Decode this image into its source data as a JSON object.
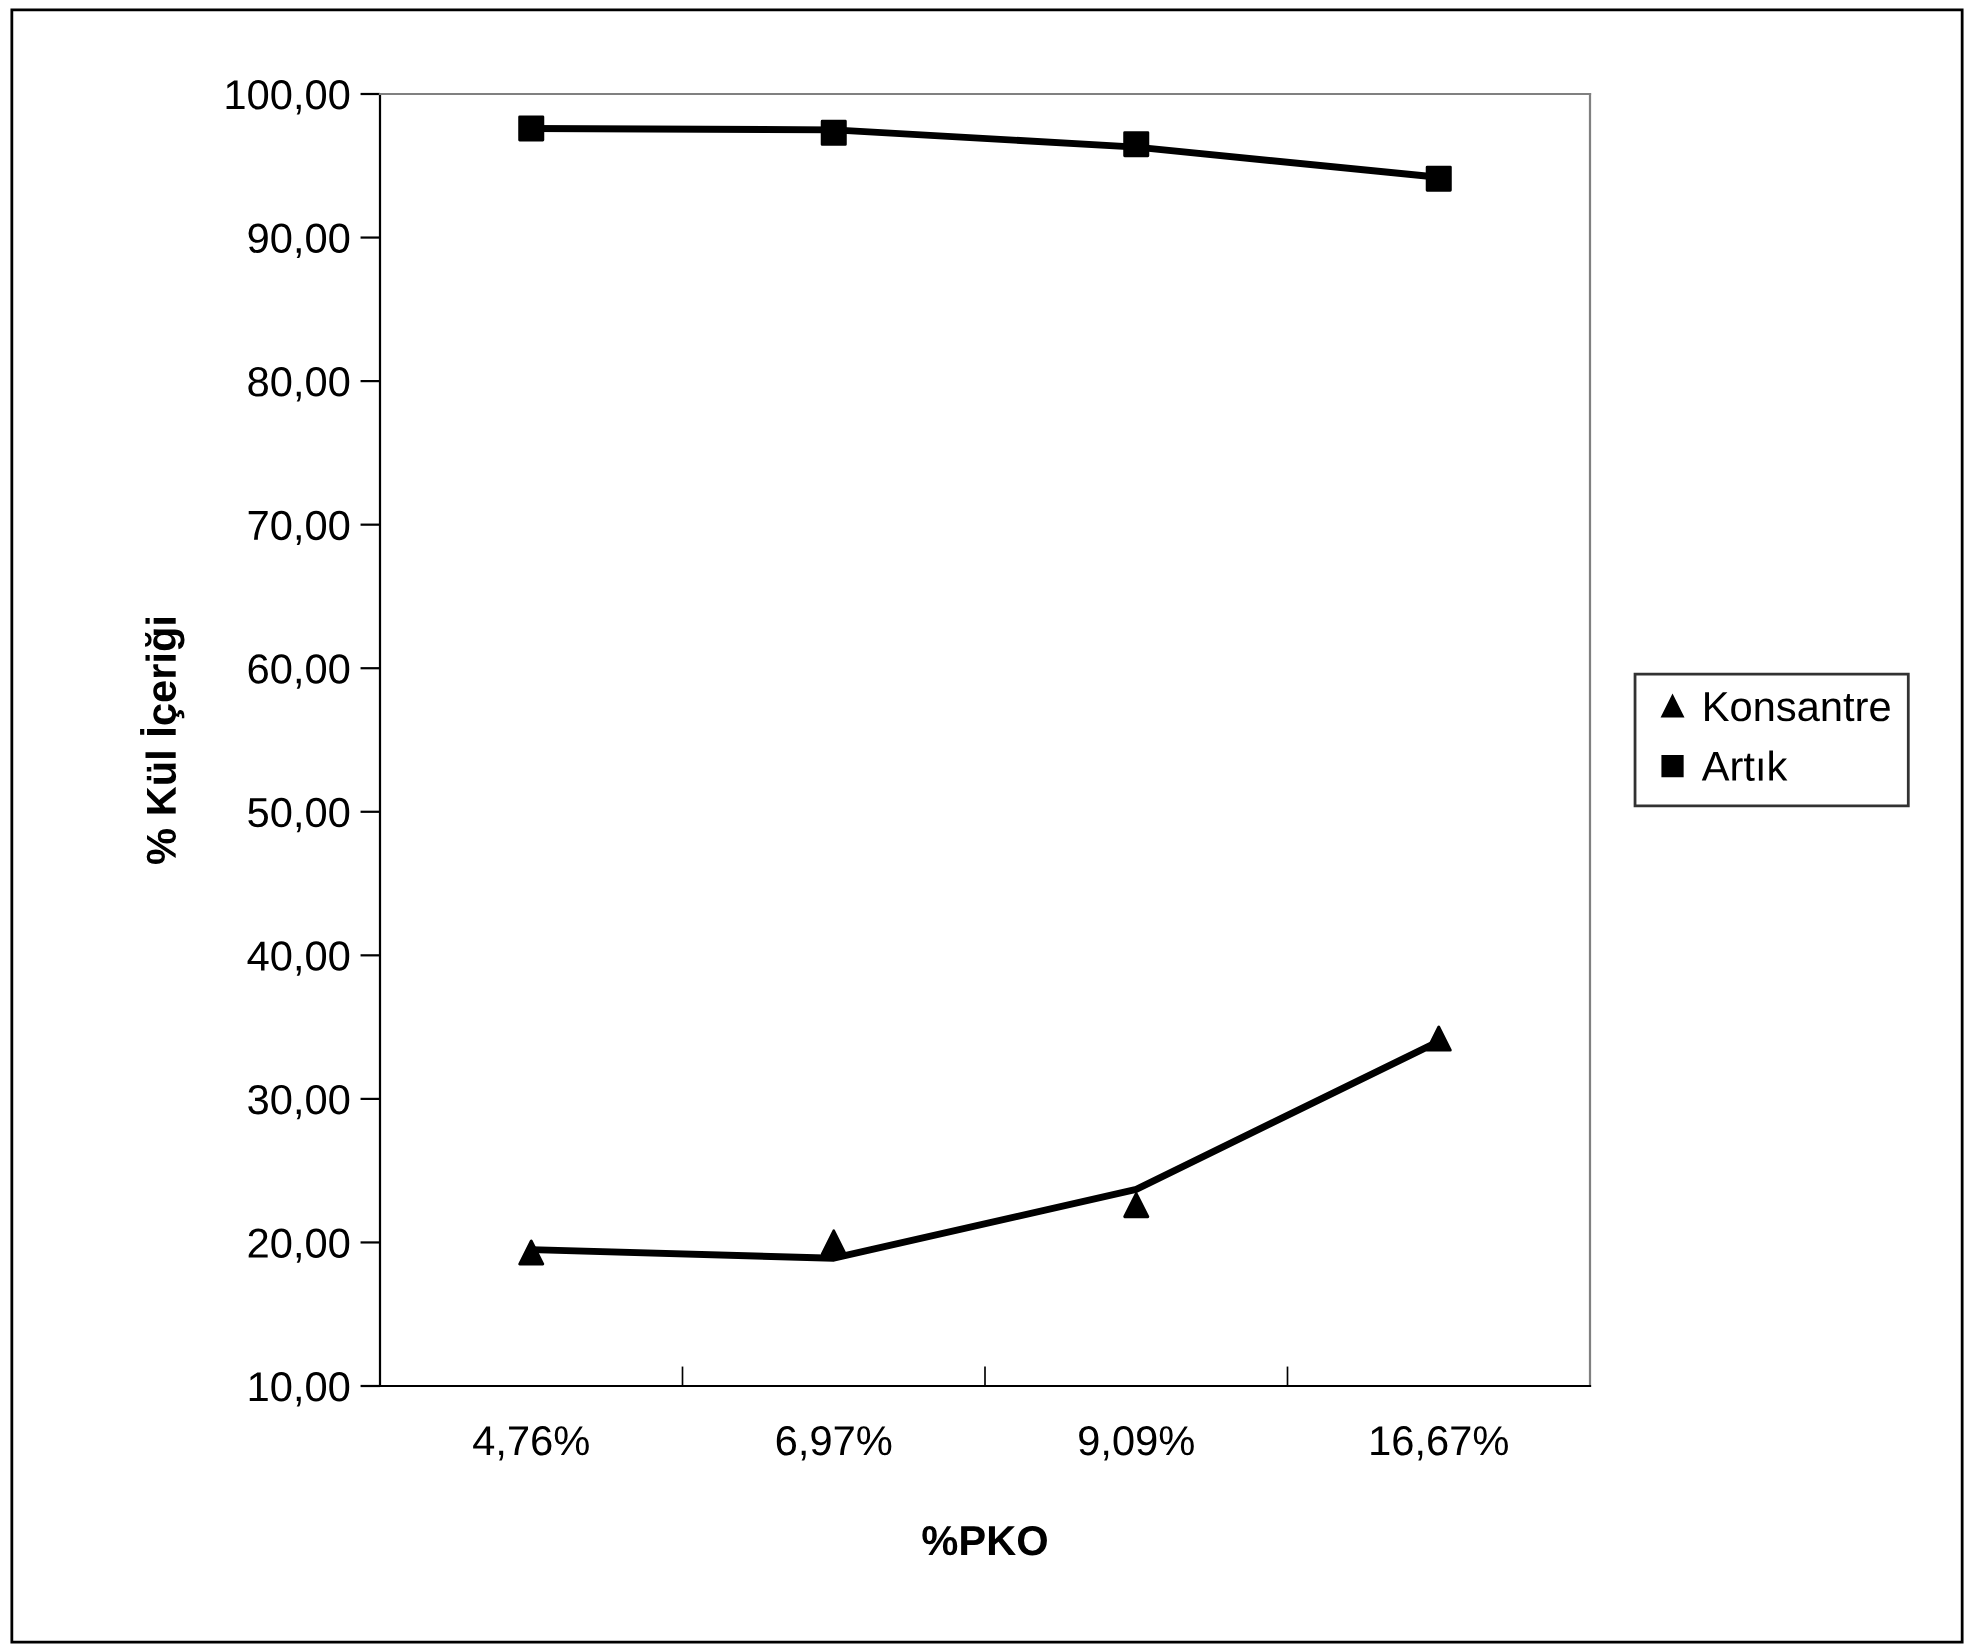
{
  "chart_data": {
    "type": "line",
    "xlabel": "%PKO",
    "ylabel": "% Kül İçeriği",
    "categories": [
      "4,76%",
      "6,97%",
      "9,09%",
      "16,67%"
    ],
    "ylim": [
      10,
      100
    ],
    "yticks": [
      {
        "value": 10,
        "label": "10,00"
      },
      {
        "value": 20,
        "label": "20,00"
      },
      {
        "value": 30,
        "label": "30,00"
      },
      {
        "value": 40,
        "label": "40,00"
      },
      {
        "value": 50,
        "label": "50,00"
      },
      {
        "value": 60,
        "label": "60,00"
      },
      {
        "value": 70,
        "label": "70,00"
      },
      {
        "value": 80,
        "label": "80,00"
      },
      {
        "value": 90,
        "label": "90,00"
      },
      {
        "value": 100,
        "label": "100,00"
      }
    ],
    "series": [
      {
        "name": "Konsantre",
        "type": "scatter",
        "marker": "triangle",
        "color": "#000000",
        "values": [
          19.3,
          20.0,
          22.6,
          34.2
        ]
      },
      {
        "name": "Artık",
        "type": "scatter",
        "marker": "square",
        "color": "#000000",
        "values": [
          97.6,
          97.3,
          96.5,
          94.1
        ]
      },
      {
        "color": "#000000",
        "values": [
          19.5,
          18.9,
          23.7,
          34.0
        ]
      },
      {
        "color": "#000000",
        "values": [
          97.6,
          97.5,
          96.3,
          94.2
        ]
      }
    ],
    "grid": false,
    "legend": "right",
    "line_style": "solid"
  }
}
